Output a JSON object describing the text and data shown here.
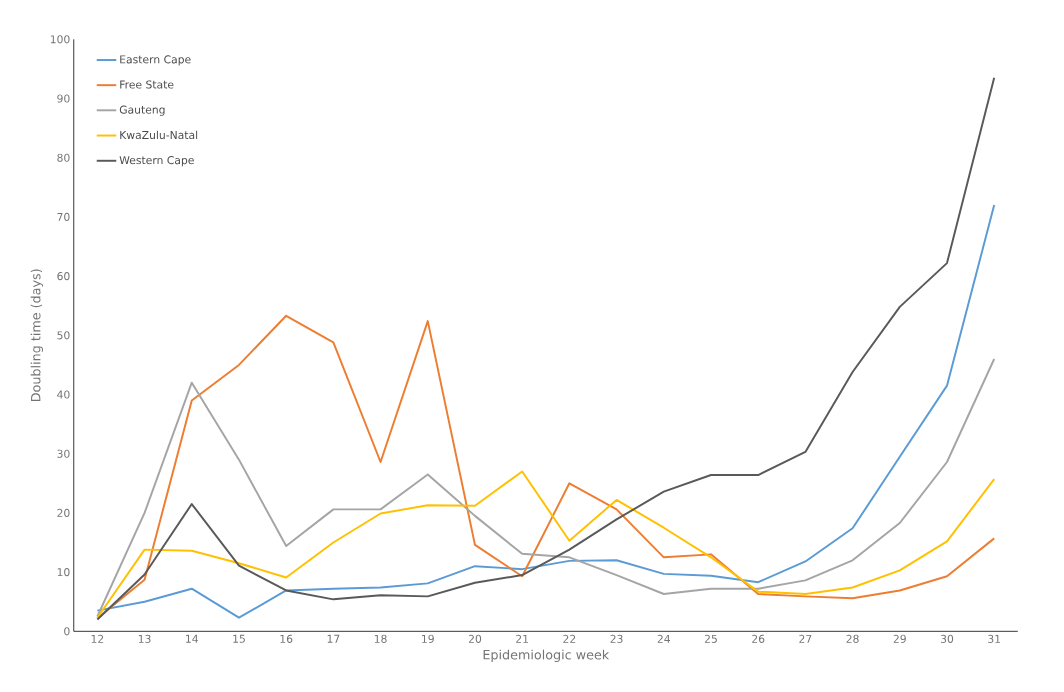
{
  "chart_data": {
    "type": "line",
    "xlabel": "Epidemiologic week",
    "ylabel": "Doubling time (days)",
    "categories": [
      "12",
      "13",
      "14",
      "15",
      "16",
      "17",
      "18",
      "19",
      "20",
      "21",
      "22",
      "23",
      "24",
      "25",
      "26",
      "27",
      "28",
      "29",
      "30",
      "31"
    ],
    "ylim": [
      0,
      100
    ],
    "yticks": [
      0,
      10,
      20,
      30,
      40,
      50,
      60,
      70,
      80,
      90,
      100
    ],
    "grid": false,
    "legend": "top left",
    "marker": "none",
    "series": [
      {
        "name": "Eastern Cape",
        "color": "#5b9bd5",
        "values": [
          3.5,
          5,
          7.2,
          2.3,
          6.9,
          7.2,
          7.4,
          8.1,
          11,
          10.5,
          11.9,
          12,
          9.7,
          9.4,
          8.3,
          11.8,
          17.4,
          29.5,
          41.5,
          72
        ]
      },
      {
        "name": "Free State",
        "color": "#ed7d31",
        "values": [
          2.2,
          8.7,
          39,
          45,
          53.3,
          48.8,
          28.6,
          52.4,
          14.6,
          9.3,
          25,
          20.6,
          12.5,
          13,
          6.3,
          5.9,
          5.6,
          6.9,
          9.3,
          15.7
        ]
      },
      {
        "name": "Gauteng",
        "color": "#a5a5a5",
        "values": [
          2.5,
          20,
          42,
          29,
          14.4,
          20.6,
          20.6,
          26.5,
          19.5,
          13.1,
          12.5,
          9.5,
          6.3,
          7.2,
          7.2,
          8.6,
          12,
          18.3,
          28.6,
          46
        ]
      },
      {
        "name": "KwaZulu-Natal",
        "color": "#ffc000",
        "values": [
          2.3,
          13.8,
          13.6,
          11.5,
          9.1,
          15,
          19.9,
          21.3,
          21.2,
          27,
          15.3,
          22.2,
          17.5,
          12.5,
          6.7,
          6.3,
          7.4,
          10.3,
          15.2,
          25.7
        ]
      },
      {
        "name": "Western Cape",
        "color": "#595959",
        "values": [
          2,
          9.6,
          21.5,
          11.1,
          6.9,
          5.4,
          6.1,
          5.9,
          8.2,
          9.5,
          13.8,
          18.9,
          23.6,
          26.4,
          26.4,
          30.3,
          43.8,
          54.8,
          62.2,
          93.5
        ]
      }
    ]
  }
}
